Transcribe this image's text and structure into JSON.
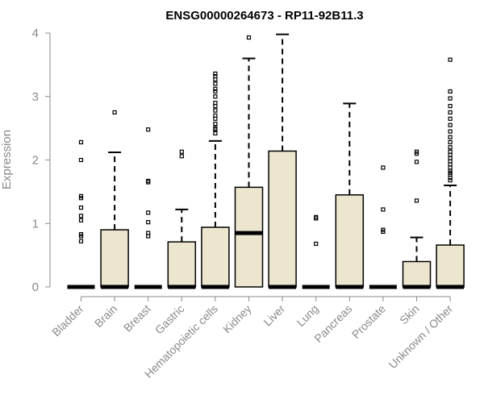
{
  "chart_data": {
    "type": "boxplot",
    "title": "ENSG00000264673 - RP11-92B11.3",
    "xlabel": "",
    "ylabel": "Expression",
    "ylim": [
      0,
      4
    ],
    "yticks": [
      "0",
      "1",
      "2",
      "3",
      "4"
    ],
    "grid": false,
    "legend": "none",
    "box_color": "#ede6cf",
    "categories": [
      "Bladder",
      "Brain",
      "Breast",
      "Gastric",
      "Hematopoietic cells",
      "Kidney",
      "Liver",
      "Lung",
      "Pancreas",
      "Prostate",
      "Skin",
      "Unknown / Other"
    ],
    "boxes": [
      {
        "min": 0,
        "q1": 0,
        "median": 0,
        "q3": 0,
        "max": 0,
        "outliers": [
          0.72,
          0.8,
          0.83,
          1.05,
          1.12,
          1.25,
          1.4,
          1.43,
          2.0,
          2.28
        ]
      },
      {
        "min": 0,
        "q1": 0,
        "median": 0,
        "q3": 0.9,
        "max": 2.12,
        "outliers": [
          2.75
        ]
      },
      {
        "min": 0,
        "q1": 0,
        "median": 0,
        "q3": 0,
        "max": 0,
        "outliers": [
          0.8,
          0.85,
          1.02,
          1.17,
          1.65,
          1.67,
          2.48
        ]
      },
      {
        "min": 0,
        "q1": 0,
        "median": 0,
        "q3": 0.71,
        "max": 1.22,
        "outliers": [
          2.06,
          2.13
        ]
      },
      {
        "min": 0,
        "q1": 0,
        "median": 0,
        "q3": 0.94,
        "max": 2.3,
        "outliers": [
          2.42,
          2.48,
          2.5,
          2.57,
          2.65,
          2.7,
          2.78,
          2.85,
          2.9,
          3.0,
          3.08,
          3.12,
          3.2,
          3.27,
          3.32,
          3.36
        ]
      },
      {
        "min": 0,
        "q1": 0,
        "median": 0.85,
        "q3": 1.57,
        "max": 3.6,
        "outliers": [
          3.93
        ]
      },
      {
        "min": 0,
        "q1": 0,
        "median": 0,
        "q3": 2.14,
        "max": 3.98,
        "outliers": []
      },
      {
        "min": 0,
        "q1": 0,
        "median": 0,
        "q3": 0,
        "max": 0,
        "outliers": [
          0.68,
          1.08,
          1.1
        ]
      },
      {
        "min": 0,
        "q1": 0,
        "median": 0,
        "q3": 1.45,
        "max": 2.89,
        "outliers": []
      },
      {
        "min": 0,
        "q1": 0,
        "median": 0,
        "q3": 0,
        "max": 0,
        "outliers": [
          0.87,
          0.9,
          1.22,
          1.88
        ]
      },
      {
        "min": 0,
        "q1": 0,
        "median": 0,
        "q3": 0.4,
        "max": 0.78,
        "outliers": [
          1.36,
          1.97,
          2.1,
          2.13
        ]
      },
      {
        "min": 0,
        "q1": 0,
        "median": 0,
        "q3": 0.66,
        "max": 1.6,
        "outliers": [
          1.68,
          1.72,
          1.77,
          1.8,
          1.83,
          1.88,
          1.93,
          1.98,
          2.03,
          2.08,
          2.13,
          2.2,
          2.28,
          2.36,
          2.45,
          2.55,
          2.65,
          2.75,
          2.85,
          2.97,
          3.08,
          3.58
        ]
      }
    ]
  }
}
